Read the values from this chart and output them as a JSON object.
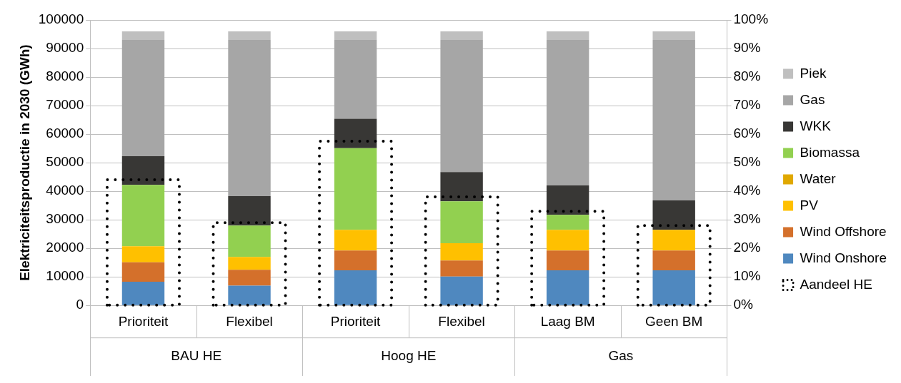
{
  "chart_data": {
    "type": "bar",
    "stacked": true,
    "ylabel": "Elektriciteitsproductie in 2030 (GWh)",
    "categories": [
      "Prioriteit",
      "Flexibel",
      "Prioriteit",
      "Flexibel",
      "Laag BM",
      "Geen BM"
    ],
    "annotations": [
      "BAU HE",
      "Hoog HE",
      "Gas"
    ],
    "series": [
      {
        "name": "Wind Onshore",
        "color": "#4f88bf",
        "values": [
          8300,
          6900,
          12300,
          10100,
          12300,
          12300
        ]
      },
      {
        "name": "Wind Offshore",
        "color": "#d4702b",
        "values": [
          6800,
          5600,
          6900,
          5600,
          6900,
          6900
        ]
      },
      {
        "name": "PV",
        "color": "#ffc000",
        "values": [
          5600,
          4500,
          7300,
          6100,
          7300,
          7300
        ]
      },
      {
        "name": "Water",
        "color": "#e0a800",
        "values": [
          0,
          0,
          0,
          0,
          0,
          0
        ]
      },
      {
        "name": "Biomassa",
        "color": "#92d050",
        "values": [
          21500,
          11000,
          28600,
          14700,
          5200,
          0
        ]
      },
      {
        "name": "WKK",
        "color": "#383735",
        "values": [
          10100,
          10300,
          10300,
          10200,
          10300,
          10300
        ]
      },
      {
        "name": "Gas",
        "color": "#a6a6a6",
        "values": [
          40700,
          54700,
          27600,
          46300,
          51000,
          56200
        ]
      },
      {
        "name": "Piek",
        "color": "#bfbfbf",
        "values": [
          3000,
          3000,
          3000,
          3000,
          3000,
          3000
        ]
      },
      {
        "name": "Aandeel HE",
        "color": "#000000",
        "axis": "y2",
        "line_style": "dotted",
        "values": [
          44,
          29,
          57.5,
          38,
          33,
          28
        ]
      }
    ],
    "ylim": [
      0,
      100000
    ],
    "yticks": [
      0,
      10000,
      20000,
      30000,
      40000,
      50000,
      60000,
      70000,
      80000,
      90000,
      100000
    ],
    "y2lim": [
      0,
      100
    ],
    "y2ticks": [
      {
        "value": 0,
        "label": "0%"
      },
      {
        "value": 10,
        "label": "10%"
      },
      {
        "value": 20,
        "label": "20%"
      },
      {
        "value": 30,
        "label": "30%"
      },
      {
        "value": 40,
        "label": "40%"
      },
      {
        "value": 50,
        "label": "50%"
      },
      {
        "value": 60,
        "label": "60%"
      },
      {
        "value": 70,
        "label": "70%"
      },
      {
        "value": 80,
        "label": "80%"
      },
      {
        "value": 90,
        "label": "90%"
      },
      {
        "value": 100,
        "label": "100%"
      }
    ],
    "grid": "y",
    "legend": "right"
  }
}
